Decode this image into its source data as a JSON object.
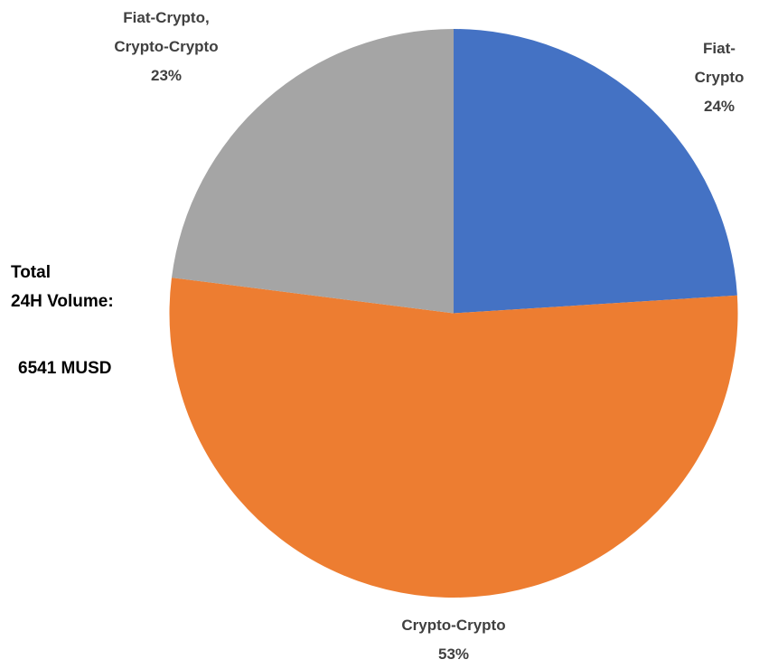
{
  "chart_data": {
    "type": "pie",
    "categories": [
      "Fiat-Crypto",
      "Crypto-Crypto",
      "Fiat-Crypto, Crypto-Crypto"
    ],
    "values": [
      24,
      53,
      23
    ],
    "value_labels": [
      "24%",
      "53%",
      "23%"
    ],
    "colors": [
      "#4472c4",
      "#ed7d31",
      "#a5a5a5"
    ],
    "annotations": [
      "Total",
      "24H Volume:",
      "6541 MUSD"
    ]
  }
}
